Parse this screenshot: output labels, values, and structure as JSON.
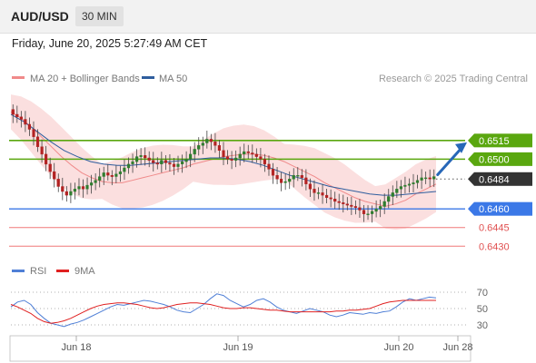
{
  "header": {
    "symbol": "AUD/USD",
    "timeframe": "30 MIN"
  },
  "datetime": "Friday, June 20, 2025 5:27:49 AM CET",
  "price_panel": {
    "legend": [
      {
        "label": "MA 20 + Bollinger Bands",
        "color": "#f08a8a"
      },
      {
        "label": "MA 50",
        "color": "#2f5e9e"
      }
    ],
    "credit": "Research © 2025 Trading Central"
  },
  "rsi_panel": {
    "legend": [
      {
        "label": "RSI",
        "color": "#4f7fd6"
      },
      {
        "label": "9MA",
        "color": "#e02020"
      }
    ]
  },
  "colors": {
    "candle_up": "#2f7d2f",
    "candle_down": "#b22222",
    "resistance": "#5aa70f",
    "pivot": "#3b78e7",
    "support": "#f07878",
    "target_arrow": "#2767b8",
    "current_price": "#333333"
  },
  "chart_data": [
    {
      "type": "candlestick",
      "title": "AUD/USD",
      "timeframe": "30 MIN",
      "ylim": [
        0.642,
        0.6555
      ],
      "x_ticks": [
        "Jun 18",
        "Jun 19",
        "Jun 20",
        "Jun 28"
      ],
      "levels": [
        {
          "value": 0.6515,
          "label": "0.6515",
          "kind": "resistance"
        },
        {
          "value": 0.65,
          "label": "0.6500",
          "kind": "resistance"
        },
        {
          "value": 0.6484,
          "label": "0.6484",
          "kind": "current"
        },
        {
          "value": 0.646,
          "label": "0.6460",
          "kind": "pivot"
        },
        {
          "value": 0.6445,
          "label": "0.6445",
          "kind": "support"
        },
        {
          "value": 0.643,
          "label": "0.6430",
          "kind": "support"
        }
      ],
      "close": [
        0.6536,
        0.6534,
        0.6532,
        0.6528,
        0.6524,
        0.6518,
        0.651,
        0.6504,
        0.6496,
        0.649,
        0.6484,
        0.6478,
        0.6474,
        0.6471,
        0.6474,
        0.6476,
        0.6478,
        0.6476,
        0.6479,
        0.6481,
        0.6483,
        0.6486,
        0.6489,
        0.6487,
        0.6486,
        0.6488,
        0.649,
        0.6493,
        0.6496,
        0.6498,
        0.6502,
        0.6503,
        0.6501,
        0.6499,
        0.6497,
        0.6496,
        0.6499,
        0.6497,
        0.6496,
        0.6494,
        0.6496,
        0.6498,
        0.65,
        0.6504,
        0.6508,
        0.6511,
        0.6513,
        0.6516,
        0.6514,
        0.6511,
        0.6507,
        0.6502,
        0.65,
        0.6499,
        0.6501,
        0.6504,
        0.6506,
        0.6505,
        0.6504,
        0.6502,
        0.65,
        0.6496,
        0.6492,
        0.6487,
        0.6484,
        0.6481,
        0.6482,
        0.6484,
        0.6487,
        0.6487,
        0.6485,
        0.648,
        0.6476,
        0.6473,
        0.6473,
        0.6471,
        0.6469,
        0.6468,
        0.6466,
        0.6465,
        0.6464,
        0.6463,
        0.6462,
        0.6461,
        0.6459,
        0.6456,
        0.6456,
        0.6458,
        0.646,
        0.6462,
        0.6466,
        0.647,
        0.6473,
        0.6476,
        0.6478,
        0.6479,
        0.648,
        0.6481,
        0.6483,
        0.6485,
        0.6485,
        0.6484,
        0.6486
      ],
      "open": [
        0.654,
        0.6536,
        0.6534,
        0.6532,
        0.6528,
        0.6524,
        0.6518,
        0.651,
        0.6504,
        0.6496,
        0.649,
        0.6484,
        0.6478,
        0.6474,
        0.6471,
        0.6474,
        0.6476,
        0.6478,
        0.6476,
        0.6479,
        0.6481,
        0.6483,
        0.6486,
        0.6489,
        0.6487,
        0.6486,
        0.6488,
        0.649,
        0.6493,
        0.6496,
        0.6498,
        0.6502,
        0.6503,
        0.6501,
        0.6499,
        0.6497,
        0.6496,
        0.6499,
        0.6497,
        0.6496,
        0.6494,
        0.6496,
        0.6498,
        0.65,
        0.6504,
        0.6508,
        0.6511,
        0.6513,
        0.6516,
        0.6514,
        0.6511,
        0.6507,
        0.6502,
        0.65,
        0.6499,
        0.6501,
        0.6504,
        0.6506,
        0.6505,
        0.6504,
        0.6502,
        0.65,
        0.6496,
        0.6492,
        0.6487,
        0.6484,
        0.6481,
        0.6482,
        0.6484,
        0.6487,
        0.6487,
        0.6485,
        0.648,
        0.6476,
        0.6473,
        0.6473,
        0.6471,
        0.6469,
        0.6468,
        0.6466,
        0.6465,
        0.6464,
        0.6463,
        0.6462,
        0.6461,
        0.6459,
        0.6456,
        0.6456,
        0.6458,
        0.646,
        0.6462,
        0.6466,
        0.647,
        0.6473,
        0.6476,
        0.6478,
        0.6479,
        0.648,
        0.6481,
        0.6483,
        0.6485,
        0.6485,
        0.6484
      ],
      "ma20": [
        0.6538,
        0.6533,
        0.6526,
        0.6518,
        0.651,
        0.6502,
        0.6495,
        0.6489,
        0.6485,
        0.6482,
        0.6481,
        0.6481,
        0.6483,
        0.6485,
        0.6487,
        0.6489,
        0.6491,
        0.6493,
        0.6496,
        0.6498,
        0.65,
        0.6502,
        0.6503,
        0.6504,
        0.6504,
        0.6503,
        0.6501,
        0.6498,
        0.6494,
        0.649,
        0.6486,
        0.6481,
        0.6477,
        0.6473,
        0.6469,
        0.6466,
        0.6464,
        0.6462,
        0.6464,
        0.6467,
        0.6472,
        0.6476,
        0.648
      ],
      "ma50": [
        0.6536,
        0.653,
        0.6522,
        0.6514,
        0.6507,
        0.6502,
        0.6498,
        0.6496,
        0.6495,
        0.6495,
        0.6496,
        0.6497,
        0.6498,
        0.6499,
        0.65,
        0.6501,
        0.6501,
        0.65,
        0.6498,
        0.6495,
        0.6491,
        0.6487,
        0.6484,
        0.6481,
        0.6478,
        0.6476,
        0.6474,
        0.6472,
        0.6471,
        0.6471,
        0.6472,
        0.6473,
        0.6474
      ]
    },
    {
      "type": "line",
      "title": "RSI",
      "ylim": [
        20,
        80
      ],
      "y_ticks": [
        30,
        50,
        70
      ],
      "series": [
        {
          "name": "RSI",
          "values": [
            52,
            58,
            60,
            55,
            45,
            38,
            32,
            30,
            28,
            31,
            33,
            36,
            40,
            44,
            48,
            52,
            55,
            54,
            56,
            58,
            60,
            59,
            57,
            55,
            52,
            48,
            46,
            45,
            50,
            55,
            62,
            68,
            66,
            60,
            56,
            52,
            55,
            60,
            62,
            58,
            52,
            48,
            46,
            44,
            47,
            50,
            48,
            46,
            42,
            40,
            42,
            45,
            44,
            43,
            45,
            44,
            46,
            47,
            52,
            58,
            62,
            60,
            62,
            64,
            63
          ]
        },
        {
          "name": "9MA",
          "values": [
            55,
            52,
            48,
            44,
            38,
            34,
            32,
            33,
            35,
            38,
            42,
            46,
            50,
            53,
            55,
            56,
            57,
            57,
            56,
            55,
            53,
            51,
            50,
            51,
            53,
            55,
            56,
            57,
            57,
            56,
            55,
            53,
            51,
            50,
            50,
            51,
            51,
            50,
            49,
            48,
            48,
            47,
            46,
            46,
            46,
            46,
            46,
            46,
            46,
            47,
            47,
            48,
            48,
            49,
            50,
            53,
            56,
            58,
            59,
            60,
            60,
            60,
            60,
            60,
            60
          ]
        }
      ]
    }
  ]
}
